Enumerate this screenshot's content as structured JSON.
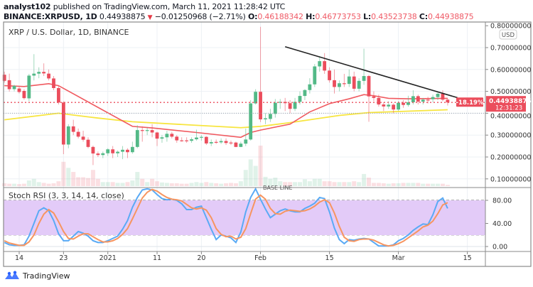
{
  "header": {
    "author": "analyst102",
    "published": "published on TradingView.com, March 11, 2021 11:28:42 UTC",
    "symbol": "BINANCE:XRPUSD, 1D",
    "last": "0.44938875",
    "change": "−0.01250968 (−2.71%)",
    "o_label": "O:",
    "o": "0.46188342",
    "h_label": "H:",
    "h": "0.46773753",
    "l_label": "L:",
    "l": "0.43523738",
    "c_label": "C:",
    "c": "0.44938875",
    "down_icon": "triangle-down"
  },
  "legend": "XRP / U.S. Dollar, 1D, BINANCE",
  "price_axis": {
    "currency": "USD",
    "ticks": [
      "0.80000000",
      "0.70000000",
      "0.60000000",
      "0.50000000",
      "0.40000000",
      "0.30000000",
      "0.20000000",
      "0.10000000"
    ],
    "tick_values": [
      0.8,
      0.7,
      0.6,
      0.5,
      0.4,
      0.3,
      0.2,
      0.1
    ],
    "last_price_label": "0.44938875",
    "countdown": "12:31:23",
    "change_badge": "-18.19%"
  },
  "base_line_label": "BASE LINE",
  "stoch": {
    "title": "Stoch RSI (3, 3, 14, 14, close)",
    "ticks": [
      "80.00",
      "40.00",
      "0.00"
    ],
    "tick_values": [
      80,
      40,
      0
    ],
    "band": [
      20,
      80
    ]
  },
  "time_axis": [
    {
      "label": "14",
      "date": "2020-12-14"
    },
    {
      "label": "23",
      "date": "2020-12-23"
    },
    {
      "label": "2021",
      "date": "2021-01-01"
    },
    {
      "label": "11",
      "date": "2021-01-11"
    },
    {
      "label": "20",
      "date": "2021-01-20"
    },
    {
      "label": "Feb",
      "date": "2021-02-01"
    },
    {
      "label": "15",
      "date": "2021-02-15"
    },
    {
      "label": "Mar",
      "date": "2021-03-01"
    },
    {
      "label": "15",
      "date": "2021-03-15"
    }
  ],
  "brand": "TradingView",
  "colors": {
    "up": "#53b987",
    "down": "#eb4d5c",
    "ma_fast": "#f0595f",
    "ma_slow": "#f7e53f",
    "stoch_k": "#5aaaf5",
    "stoch_d": "#f79560",
    "band": "#e3cbf8",
    "trendline": "#222222"
  },
  "chart_data": [
    {
      "type": "candlestick",
      "title": "XRP / U.S. Dollar, 1D, BINANCE",
      "ylim": [
        0.05,
        0.8
      ],
      "columns": [
        "date",
        "open",
        "high",
        "low",
        "close"
      ],
      "candles": [
        [
          "2020-12-11",
          0.576,
          0.59,
          0.54,
          0.548
        ],
        [
          "2020-12-12",
          0.551,
          0.581,
          0.499,
          0.51
        ],
        [
          "2020-12-13",
          0.51,
          0.53,
          0.5,
          0.525
        ],
        [
          "2020-12-14",
          0.513,
          0.52,
          0.49,
          0.497
        ],
        [
          "2020-12-15",
          0.502,
          0.51,
          0.462,
          0.469
        ],
        [
          "2020-12-16",
          0.468,
          0.58,
          0.455,
          0.572
        ],
        [
          "2020-12-17",
          0.572,
          0.67,
          0.55,
          0.581
        ],
        [
          "2020-12-18",
          0.581,
          0.61,
          0.56,
          0.589
        ],
        [
          "2020-12-19",
          0.589,
          0.628,
          0.57,
          0.582
        ],
        [
          "2020-12-20",
          0.581,
          0.6,
          0.55,
          0.559
        ],
        [
          "2020-12-21",
          0.559,
          0.57,
          0.505,
          0.515
        ],
        [
          "2020-12-22",
          0.515,
          0.525,
          0.44,
          0.449
        ],
        [
          "2020-12-23",
          0.449,
          0.455,
          0.213,
          0.257
        ],
        [
          "2020-12-24",
          0.257,
          0.35,
          0.24,
          0.34
        ],
        [
          "2020-12-25",
          0.34,
          0.37,
          0.3,
          0.315
        ],
        [
          "2020-12-26",
          0.315,
          0.33,
          0.285,
          0.293
        ],
        [
          "2020-12-27",
          0.293,
          0.32,
          0.27,
          0.279
        ],
        [
          "2020-12-28",
          0.279,
          0.29,
          0.24,
          0.246
        ],
        [
          "2020-12-29",
          0.246,
          0.252,
          0.163,
          0.216
        ],
        [
          "2020-12-30",
          0.216,
          0.225,
          0.2,
          0.209
        ],
        [
          "2020-12-31",
          0.209,
          0.225,
          0.195,
          0.217
        ],
        [
          "2021-01-01",
          0.217,
          0.24,
          0.205,
          0.235
        ],
        [
          "2021-01-02",
          0.235,
          0.25,
          0.195,
          0.217
        ],
        [
          "2021-01-03",
          0.217,
          0.23,
          0.2,
          0.224
        ],
        [
          "2021-01-04",
          0.224,
          0.25,
          0.19,
          0.233
        ],
        [
          "2021-01-05",
          0.233,
          0.24,
          0.195,
          0.222
        ],
        [
          "2021-01-06",
          0.222,
          0.27,
          0.215,
          0.246
        ],
        [
          "2021-01-07",
          0.246,
          0.345,
          0.24,
          0.323
        ],
        [
          "2021-01-08",
          0.323,
          0.34,
          0.27,
          0.319
        ],
        [
          "2021-01-09",
          0.319,
          0.335,
          0.3,
          0.323
        ],
        [
          "2021-01-10",
          0.323,
          0.35,
          0.29,
          0.312
        ],
        [
          "2021-01-11",
          0.312,
          0.315,
          0.25,
          0.284
        ],
        [
          "2021-01-12",
          0.284,
          0.3,
          0.265,
          0.29
        ],
        [
          "2021-01-13",
          0.29,
          0.32,
          0.27,
          0.306
        ],
        [
          "2021-01-14",
          0.306,
          0.315,
          0.285,
          0.293
        ],
        [
          "2021-01-15",
          0.293,
          0.3,
          0.265,
          0.276
        ],
        [
          "2021-01-16",
          0.276,
          0.29,
          0.27,
          0.274
        ],
        [
          "2021-01-17",
          0.276,
          0.29,
          0.265,
          0.272
        ],
        [
          "2021-01-18",
          0.274,
          0.29,
          0.265,
          0.281
        ],
        [
          "2021-01-19",
          0.281,
          0.325,
          0.275,
          0.289
        ],
        [
          "2021-01-20",
          0.289,
          0.3,
          0.275,
          0.292
        ],
        [
          "2021-01-21",
          0.292,
          0.295,
          0.255,
          0.262
        ],
        [
          "2021-01-22",
          0.262,
          0.28,
          0.25,
          0.268
        ],
        [
          "2021-01-23",
          0.269,
          0.28,
          0.26,
          0.267
        ],
        [
          "2021-01-24",
          0.267,
          0.285,
          0.26,
          0.273
        ],
        [
          "2021-01-25",
          0.273,
          0.285,
          0.255,
          0.264
        ],
        [
          "2021-01-26",
          0.266,
          0.275,
          0.255,
          0.262
        ],
        [
          "2021-01-27",
          0.266,
          0.27,
          0.245,
          0.246
        ],
        [
          "2021-01-28",
          0.246,
          0.27,
          0.245,
          0.261
        ],
        [
          "2021-01-29",
          0.261,
          0.33,
          0.25,
          0.28
        ],
        [
          "2021-01-30",
          0.28,
          0.46,
          0.275,
          0.445
        ],
        [
          "2021-01-31",
          0.445,
          0.51,
          0.44,
          0.498
        ],
        [
          "2021-02-01",
          0.498,
          0.795,
          0.36,
          0.372
        ],
        [
          "2021-02-02",
          0.372,
          0.4,
          0.35,
          0.377
        ],
        [
          "2021-02-03",
          0.374,
          0.42,
          0.36,
          0.397
        ],
        [
          "2021-02-04",
          0.397,
          0.465,
          0.38,
          0.448
        ],
        [
          "2021-02-05",
          0.448,
          0.465,
          0.42,
          0.452
        ],
        [
          "2021-02-06",
          0.452,
          0.47,
          0.41,
          0.446
        ],
        [
          "2021-02-07",
          0.446,
          0.46,
          0.4,
          0.42
        ],
        [
          "2021-02-08",
          0.42,
          0.47,
          0.41,
          0.452
        ],
        [
          "2021-02-09",
          0.452,
          0.5,
          0.44,
          0.479
        ],
        [
          "2021-02-10",
          0.479,
          0.51,
          0.46,
          0.506
        ],
        [
          "2021-02-11",
          0.506,
          0.56,
          0.49,
          0.532
        ],
        [
          "2021-02-12",
          0.532,
          0.625,
          0.52,
          0.614
        ],
        [
          "2021-02-13",
          0.614,
          0.66,
          0.59,
          0.638
        ],
        [
          "2021-02-14",
          0.638,
          0.675,
          0.58,
          0.595
        ],
        [
          "2021-02-15",
          0.595,
          0.61,
          0.54,
          0.551
        ],
        [
          "2021-02-16",
          0.551,
          0.6,
          0.49,
          0.52
        ],
        [
          "2021-02-17",
          0.52,
          0.55,
          0.5,
          0.537
        ],
        [
          "2021-02-18",
          0.537,
          0.58,
          0.52,
          0.534
        ],
        [
          "2021-02-19",
          0.534,
          0.6,
          0.52,
          0.568
        ],
        [
          "2021-02-20",
          0.568,
          0.59,
          0.5,
          0.512
        ],
        [
          "2021-02-21",
          0.512,
          0.56,
          0.5,
          0.548
        ],
        [
          "2021-02-22",
          0.548,
          0.695,
          0.53,
          0.57
        ],
        [
          "2021-02-23",
          0.57,
          0.575,
          0.361,
          0.477
        ],
        [
          "2021-02-24",
          0.477,
          0.5,
          0.455,
          0.47
        ],
        [
          "2021-02-25",
          0.47,
          0.485,
          0.43,
          0.44
        ],
        [
          "2021-02-26",
          0.44,
          0.45,
          0.41,
          0.431
        ],
        [
          "2021-02-27",
          0.431,
          0.455,
          0.42,
          0.439
        ],
        [
          "2021-02-28",
          0.439,
          0.445,
          0.4,
          0.417
        ],
        [
          "2021-03-01",
          0.417,
          0.455,
          0.41,
          0.448
        ],
        [
          "2021-03-02",
          0.448,
          0.46,
          0.425,
          0.438
        ],
        [
          "2021-03-03",
          0.438,
          0.48,
          0.43,
          0.45
        ],
        [
          "2021-03-04",
          0.45,
          0.505,
          0.44,
          0.478
        ],
        [
          "2021-03-05",
          0.478,
          0.485,
          0.44,
          0.453
        ],
        [
          "2021-03-06",
          0.453,
          0.47,
          0.44,
          0.462
        ],
        [
          "2021-03-07",
          0.462,
          0.475,
          0.445,
          0.459
        ],
        [
          "2021-03-08",
          0.464,
          0.485,
          0.45,
          0.474
        ],
        [
          "2021-03-09",
          0.474,
          0.495,
          0.46,
          0.489
        ],
        [
          "2021-03-10",
          0.489,
          0.505,
          0.455,
          0.462
        ],
        [
          "2021-03-11",
          0.46188342,
          0.46773753,
          0.43523738,
          0.44938875
        ]
      ],
      "volume_relative": [
        7,
        6,
        6,
        5,
        6,
        14,
        18,
        10,
        8,
        6,
        7,
        12,
        60,
        45,
        35,
        22,
        22,
        20,
        40,
        18,
        10,
        10,
        10,
        8,
        8,
        10,
        14,
        35,
        18,
        10,
        18,
        12,
        9,
        8,
        7,
        7,
        6,
        6,
        8,
        10,
        8,
        10,
        8,
        7,
        6,
        7,
        8,
        7,
        12,
        40,
        66,
        50,
        100,
        23,
        18,
        21,
        12,
        10,
        10,
        10,
        10,
        17,
        12,
        18,
        18,
        12,
        12,
        10,
        10,
        10,
        10,
        12,
        10,
        30,
        21,
        8,
        8,
        7,
        6,
        7,
        7,
        8,
        8,
        8,
        8,
        6,
        6,
        6,
        6,
        6,
        3
      ],
      "ma_fast": [
        [
          "2020-12-11",
          0.526
        ],
        [
          "2020-12-15",
          0.522
        ],
        [
          "2020-12-20",
          0.535
        ],
        [
          "2020-12-22",
          0.526
        ],
        [
          "2021-01-06",
          0.34
        ],
        [
          "2021-01-10",
          0.333
        ],
        [
          "2021-01-19",
          0.312
        ],
        [
          "2021-01-28",
          0.29
        ],
        [
          "2021-01-30",
          0.312
        ],
        [
          "2021-02-01",
          0.323
        ],
        [
          "2021-02-07",
          0.35
        ],
        [
          "2021-02-11",
          0.406
        ],
        [
          "2021-02-15",
          0.444
        ],
        [
          "2021-02-19",
          0.466
        ],
        [
          "2021-02-22",
          0.485
        ],
        [
          "2021-02-24",
          0.48
        ],
        [
          "2021-02-27",
          0.468
        ],
        [
          "2021-03-03",
          0.466
        ],
        [
          "2021-03-11",
          0.468
        ]
      ],
      "ma_slow": [
        [
          "2020-12-11",
          0.37
        ],
        [
          "2020-12-22",
          0.4
        ],
        [
          "2020-12-30",
          0.378
        ],
        [
          "2021-01-06",
          0.361
        ],
        [
          "2021-01-19",
          0.345
        ],
        [
          "2021-01-28",
          0.334
        ],
        [
          "2021-02-01",
          0.34
        ],
        [
          "2021-02-07",
          0.357
        ],
        [
          "2021-02-17",
          0.39
        ],
        [
          "2021-02-23",
          0.403
        ],
        [
          "2021-03-11",
          0.416
        ]
      ],
      "trendline": [
        [
          "2021-02-06",
          0.704
        ],
        [
          "2021-03-13",
          0.471
        ]
      ],
      "last_price": 0.44938875,
      "base_line": 0.4
    },
    {
      "type": "line",
      "title": "Stoch RSI (3, 3, 14, 14, close)",
      "ylim": [
        0,
        100
      ],
      "series": [
        {
          "key": "K",
          "values": [
            7,
            3,
            2,
            2,
            3,
            18,
            40,
            62,
            67,
            62,
            45,
            22,
            10,
            10,
            18,
            26,
            23,
            18,
            10,
            7,
            7,
            10,
            14,
            18,
            30,
            45,
            68,
            85,
            98,
            100,
            98,
            90,
            83,
            81,
            82,
            80,
            74,
            64,
            64,
            68,
            70,
            50,
            30,
            12,
            20,
            18,
            15,
            7,
            25,
            60,
            85,
            100,
            82,
            65,
            50,
            56,
            62,
            65,
            62,
            60,
            60,
            66,
            70,
            75,
            85,
            83,
            60,
            32,
            12,
            5,
            12,
            11,
            13,
            14,
            13,
            7,
            1,
            1,
            1,
            3,
            10,
            14,
            20,
            28,
            34,
            39,
            38,
            55,
            78,
            84,
            66
          ]
        },
        {
          "key": "D",
          "values": [
            10,
            6,
            4,
            2,
            2,
            8,
            20,
            40,
            56,
            64,
            58,
            43,
            26,
            14,
            13,
            18,
            22,
            22,
            17,
            12,
            8,
            8,
            10,
            14,
            21,
            31,
            48,
            66,
            84,
            94,
            99,
            96,
            90,
            85,
            82,
            81,
            79,
            73,
            67,
            65,
            67,
            63,
            50,
            31,
            21,
            17,
            18,
            13,
            16,
            31,
            57,
            82,
            89,
            82,
            66,
            57,
            56,
            61,
            63,
            62,
            61,
            62,
            65,
            70,
            77,
            81,
            76,
            58,
            35,
            16,
            10,
            9,
            12,
            13,
            13,
            11,
            7,
            3,
            1,
            2,
            5,
            9,
            15,
            21,
            27,
            34,
            37,
            44,
            57,
            72,
            76
          ]
        }
      ]
    }
  ]
}
